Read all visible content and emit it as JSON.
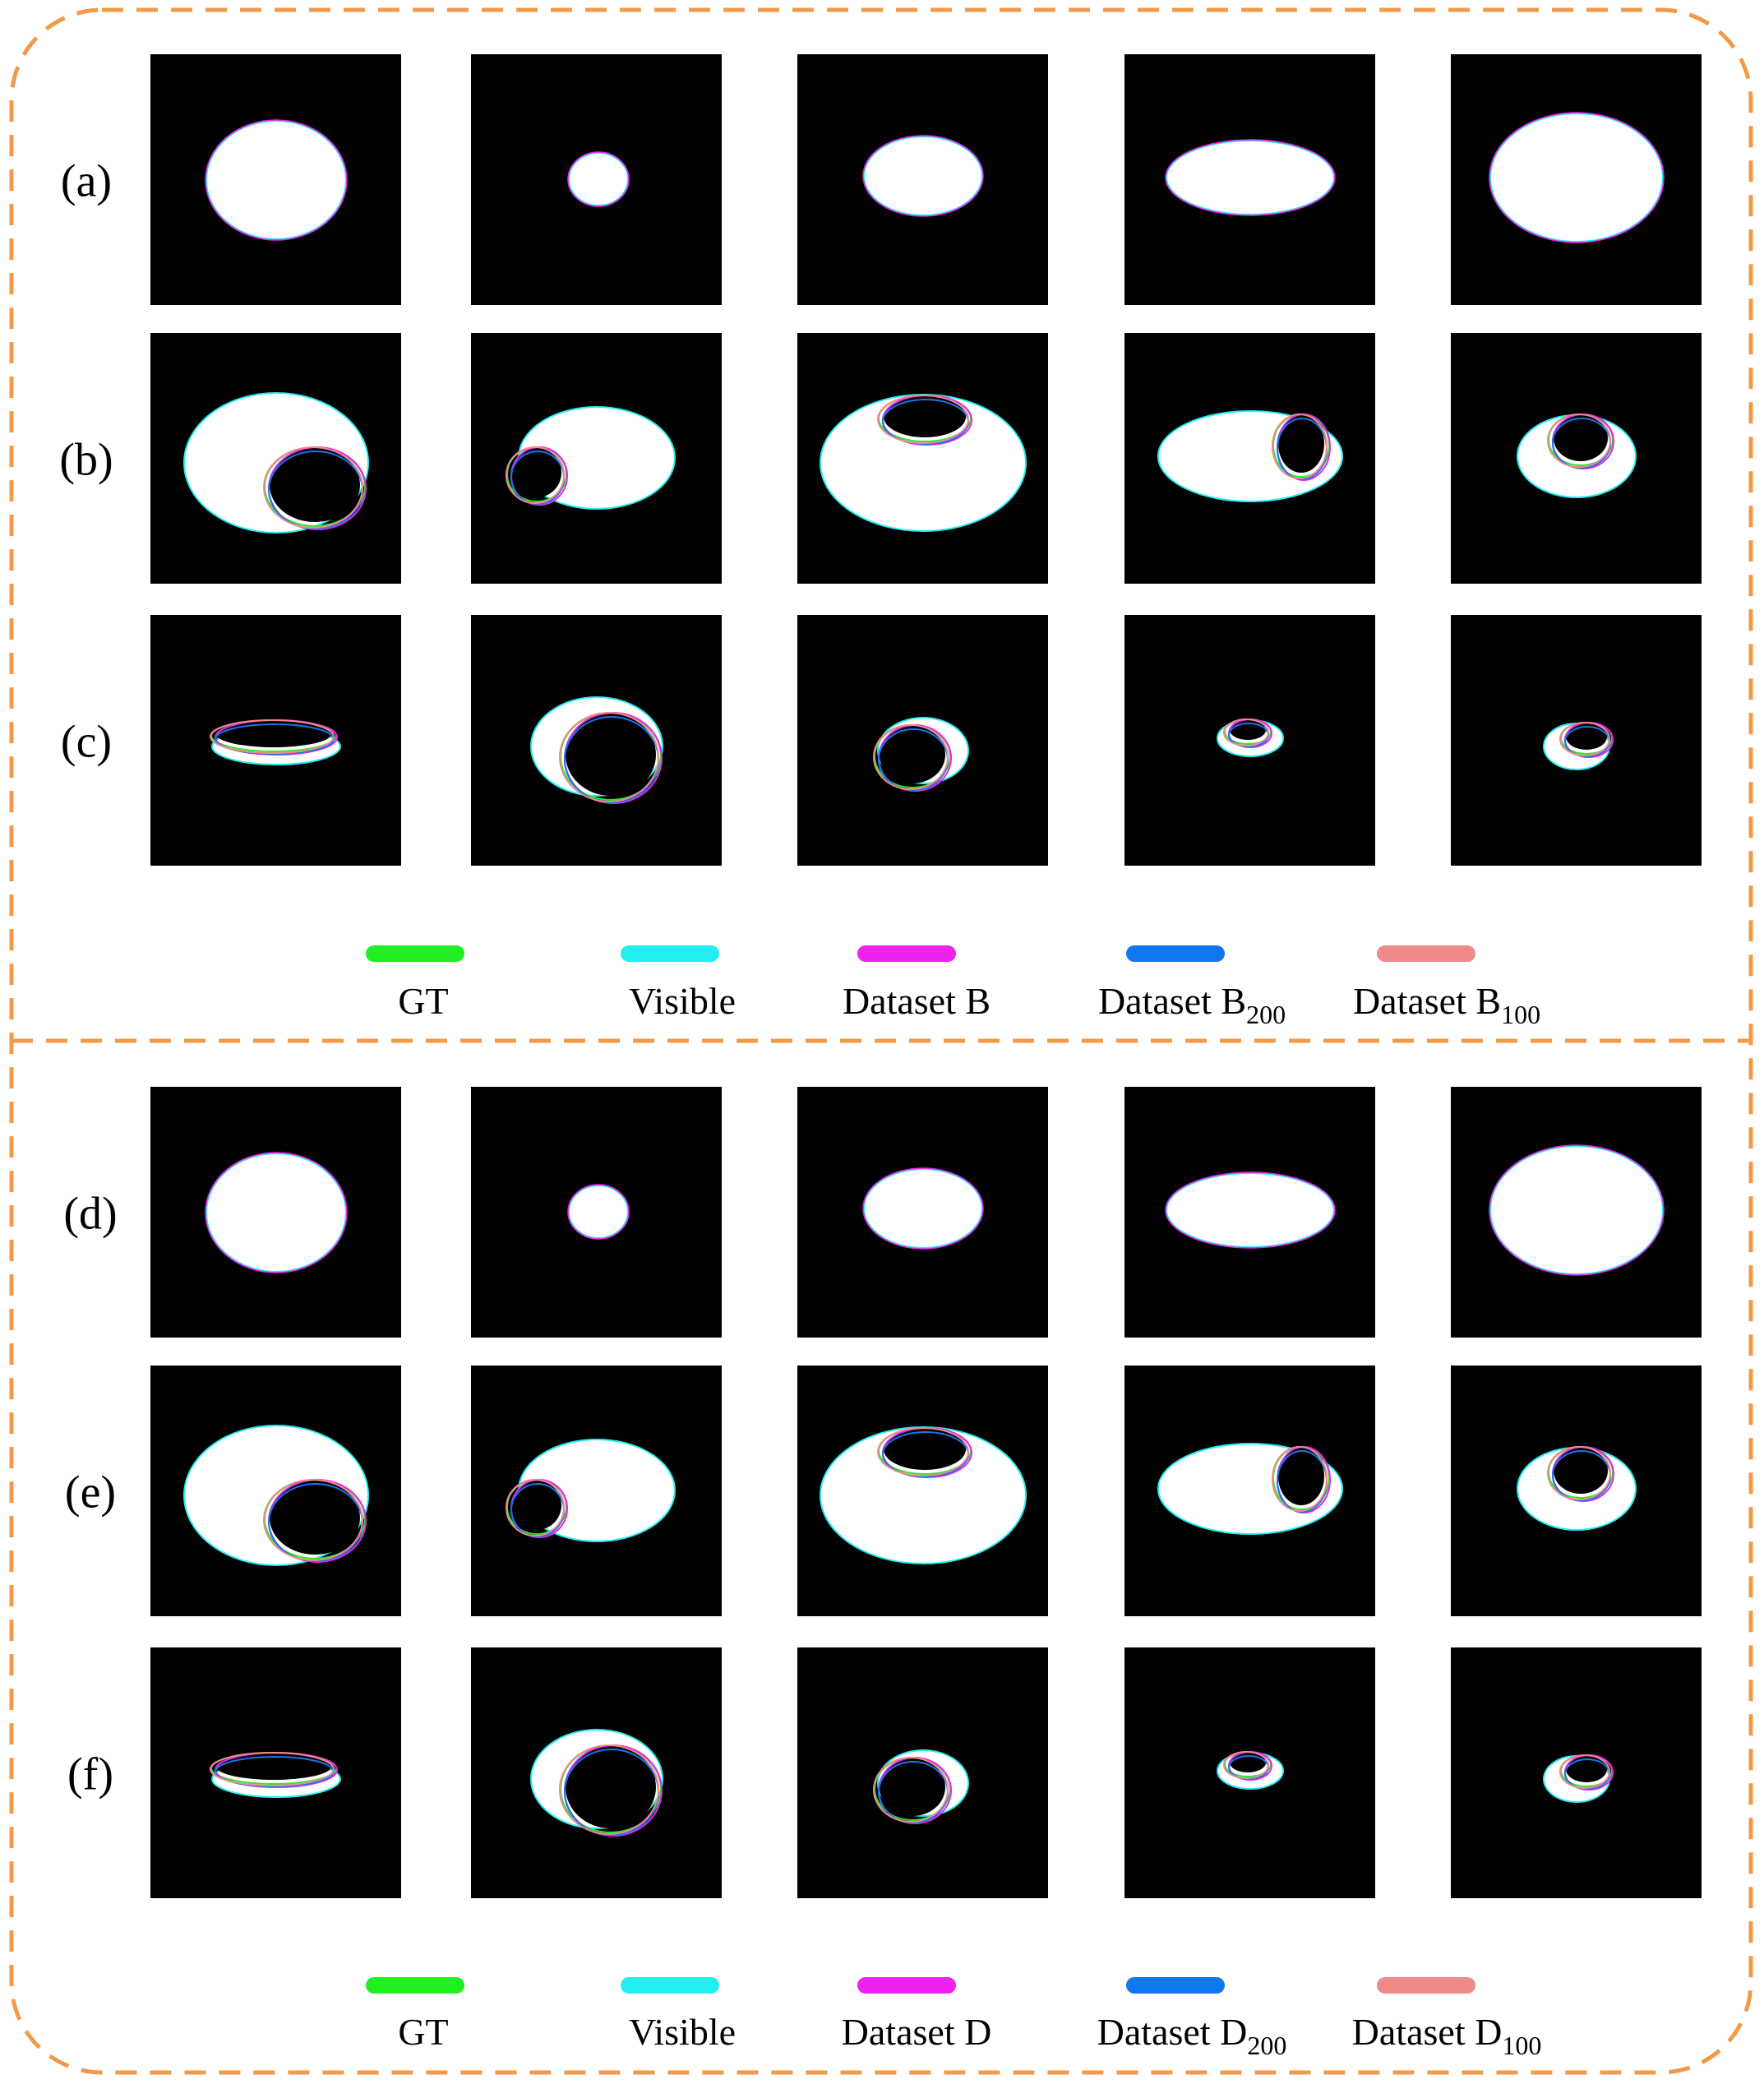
{
  "colors": {
    "frame": "#f29a4a",
    "gt": "#22ee22",
    "visible": "#22eef0",
    "dataset": "#ee22ee",
    "dataset200": "#1177ee",
    "dataset100": "#f08a8a"
  },
  "panels": [
    {
      "rows": [
        "(a)",
        "(b)",
        "(c)"
      ],
      "legend": [
        {
          "label": "GT",
          "sub": "",
          "color_key": "gt"
        },
        {
          "label": "Visible",
          "sub": "",
          "color_key": "visible"
        },
        {
          "label": "Dataset B",
          "sub": "",
          "color_key": "dataset"
        },
        {
          "label": "Dataset B",
          "sub": "200",
          "color_key": "dataset200"
        },
        {
          "label": "Dataset B",
          "sub": "100",
          "color_key": "dataset100"
        }
      ]
    },
    {
      "rows": [
        "(d)",
        "(e)",
        "(f)"
      ],
      "legend": [
        {
          "label": "GT",
          "sub": "",
          "color_key": "gt"
        },
        {
          "label": "Visible",
          "sub": "",
          "color_key": "visible"
        },
        {
          "label": "Dataset D",
          "sub": "",
          "color_key": "dataset"
        },
        {
          "label": "Dataset D",
          "sub": "200",
          "color_key": "dataset200"
        },
        {
          "label": "Dataset D",
          "sub": "100",
          "color_key": "dataset100"
        }
      ]
    }
  ]
}
